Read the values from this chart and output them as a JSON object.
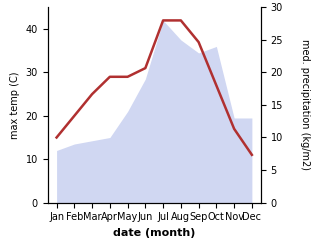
{
  "months": [
    "Jan",
    "Feb",
    "Mar",
    "Apr",
    "May",
    "Jun",
    "Jul",
    "Aug",
    "Sep",
    "Oct",
    "Nov",
    "Dec"
  ],
  "precipitation": [
    8,
    9,
    9.5,
    10,
    14,
    19,
    28,
    25,
    23,
    24,
    13,
    13
  ],
  "temp_line": [
    15,
    20,
    25,
    29,
    29,
    31,
    42,
    42,
    37,
    27,
    17,
    11
  ],
  "temp_ylim": [
    0,
    45
  ],
  "precip_ylim": [
    0,
    30
  ],
  "temp_yticks": [
    0,
    10,
    20,
    30,
    40
  ],
  "precip_yticks": [
    0,
    5,
    10,
    15,
    20,
    25,
    30
  ],
  "fill_color": "#c8d0f0",
  "fill_alpha": 0.85,
  "line_color": "#b03030",
  "line_width": 1.8,
  "xlabel": "date (month)",
  "ylabel_left": "max temp (C)",
  "ylabel_right": "med. precipitation (kg/m2)",
  "label_fontsize": 8,
  "tick_fontsize": 7
}
